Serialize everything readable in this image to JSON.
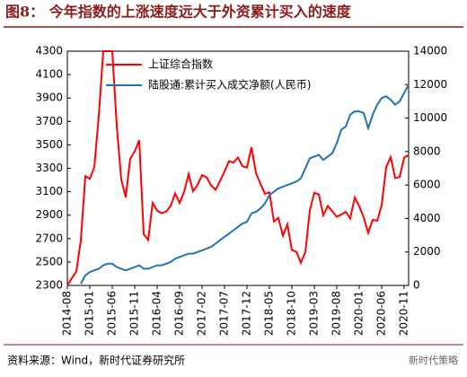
{
  "chart_data": {
    "type": "line",
    "title": "图8：  今年指数的上涨速度远大于外资累计买入的速度",
    "categories": [
      "2014-08",
      null,
      null,
      null,
      null,
      "2015-01",
      null,
      null,
      null,
      null,
      "2015-06",
      null,
      null,
      null,
      null,
      "2015-11",
      null,
      null,
      null,
      null,
      "2016-04",
      null,
      null,
      null,
      null,
      "2016-09",
      null,
      null,
      null,
      null,
      "2017-02",
      null,
      null,
      null,
      null,
      "2017-07",
      null,
      null,
      null,
      null,
      "2017-12",
      null,
      null,
      null,
      null,
      "2018-05",
      null,
      null,
      null,
      null,
      "2018-10",
      null,
      null,
      null,
      null,
      "2019-03",
      null,
      null,
      null,
      null,
      "2019-08",
      null,
      null,
      null,
      null,
      "2020-01",
      null,
      null,
      null,
      null,
      "2020-06",
      null,
      null,
      null,
      null,
      "2020-11",
      null
    ],
    "series": [
      {
        "name": "上证综合指数",
        "color": "#ff0000",
        "values": [
          2300,
          2363,
          2420,
          2683,
          3234,
          3210,
          3310,
          3748,
          4300,
          4300,
          4300,
          3664,
          3206,
          3053,
          3383,
          3445,
          3539,
          2738,
          2688,
          3004,
          2938,
          2917,
          2930,
          2979,
          3085,
          3005,
          3100,
          3250,
          3104,
          3159,
          3242,
          3223,
          3155,
          3117,
          3192,
          3273,
          3361,
          3349,
          3393,
          3317,
          3307,
          3481,
          3259,
          3169,
          3082,
          3095,
          2847,
          2876,
          2725,
          2821,
          2603,
          2588,
          2494,
          2585,
          2941,
          3091,
          3078,
          2899,
          2979,
          2933,
          2886,
          2905,
          2929,
          2872,
          3050,
          2977,
          2880,
          2750,
          2860,
          2852,
          2985,
          3310,
          3396,
          3218,
          3225,
          3392,
          3414
        ]
      },
      {
        "name": "陆股通:累计买入成交净额(人民币)",
        "color": "#2171b5",
        "axis": "y2",
        "values": [
          null,
          null,
          null,
          100,
          600,
          800,
          900,
          1000,
          1200,
          1300,
          1300,
          1100,
          1000,
          900,
          1000,
          1100,
          1200,
          1000,
          1000,
          1100,
          1200,
          1200,
          1300,
          1400,
          1600,
          1700,
          1800,
          1900,
          1900,
          2000,
          2100,
          2200,
          2300,
          2500,
          2700,
          2900,
          3100,
          3300,
          3500,
          3700,
          3800,
          4300,
          4400,
          4600,
          4900,
          5400,
          5600,
          5800,
          5900,
          6000,
          6100,
          6200,
          6400,
          7000,
          7600,
          7700,
          7800,
          7500,
          7700,
          7900,
          8500,
          9300,
          9500,
          10200,
          10400,
          10400,
          10300,
          9400,
          10200,
          10800,
          11200,
          11300,
          11100,
          10800,
          11000,
          11500,
          12000
        ]
      }
    ],
    "ylim": [
      2300,
      4300
    ],
    "yticks": [
      2300,
      2500,
      2700,
      2900,
      3100,
      3300,
      3500,
      3700,
      3900,
      4100,
      4300
    ],
    "y2lim": [
      0,
      14000
    ],
    "y2ticks": [
      0,
      2000,
      4000,
      6000,
      8000,
      10000,
      12000,
      14000
    ],
    "grid": false,
    "legend": "top-left"
  },
  "source": "资料来源：Wind，新时代证券研究所",
  "watermark": "新时代策略"
}
